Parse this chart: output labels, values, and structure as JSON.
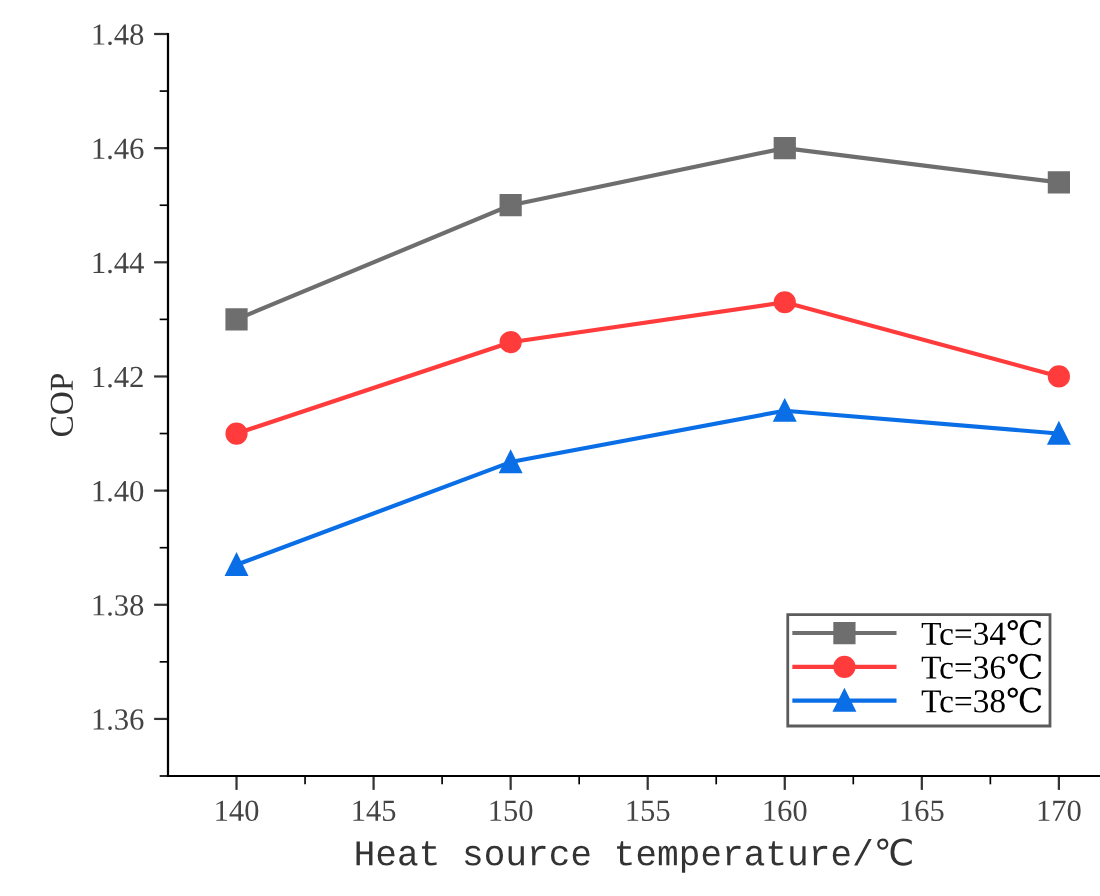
{
  "chart_data": {
    "type": "line",
    "xlabel": "Heat source temperature/℃",
    "ylabel": "COP",
    "x": [
      140,
      150,
      160,
      170
    ],
    "series": [
      {
        "name": "Tc=34℃",
        "color": "#6e6e6e",
        "marker": "square",
        "values": [
          1.43,
          1.45,
          1.46,
          1.454
        ]
      },
      {
        "name": "Tc=36℃",
        "color": "#ff3b3b",
        "marker": "circle",
        "values": [
          1.41,
          1.426,
          1.433,
          1.42
        ]
      },
      {
        "name": "Tc=38℃",
        "color": "#0a6ee6",
        "marker": "triangle",
        "values": [
          1.387,
          1.405,
          1.414,
          1.41
        ]
      }
    ],
    "xlim": [
      137.5,
      171.5
    ],
    "ylim": [
      1.35,
      1.48
    ],
    "xticks": [
      140,
      {
        "value": 142.5,
        "label": null
      },
      145,
      {
        "value": 147.5,
        "label": null
      },
      150,
      {
        "value": 152.5,
        "label": null
      },
      155,
      {
        "value": 157.5,
        "label": null
      },
      160,
      {
        "value": 162.5,
        "label": null
      },
      165,
      {
        "value": 167.5,
        "label": null
      },
      170
    ],
    "yticks": [
      {
        "value": 1.35,
        "label": null
      },
      {
        "value": 1.36,
        "label": "1.36"
      },
      {
        "value": 1.37,
        "label": null
      },
      {
        "value": 1.38,
        "label": "1.38"
      },
      {
        "value": 1.39,
        "label": null
      },
      {
        "value": 1.4,
        "label": "1.40"
      },
      {
        "value": 1.41,
        "label": null
      },
      {
        "value": 1.42,
        "label": "1.42"
      },
      {
        "value": 1.43,
        "label": null
      },
      {
        "value": 1.44,
        "label": "1.44"
      },
      {
        "value": 1.45,
        "label": null
      },
      {
        "value": 1.46,
        "label": "1.46"
      },
      {
        "value": 1.47,
        "label": null
      },
      {
        "value": 1.48,
        "label": "1.48"
      }
    ],
    "grid": false,
    "legend": "bottom right",
    "line_style": "solid"
  }
}
